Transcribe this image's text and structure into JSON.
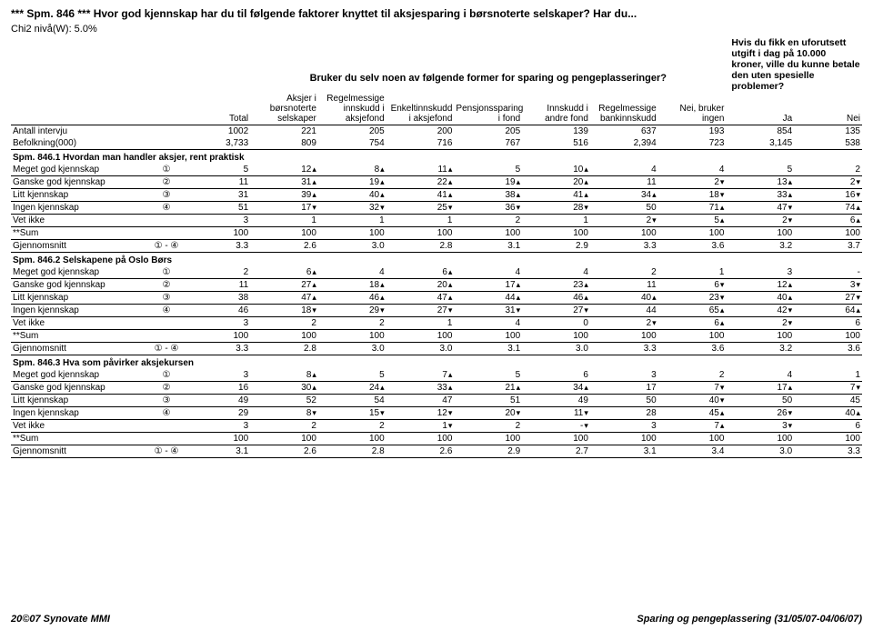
{
  "title": "*** Spm. 846 *** Hvor god kjennskap har du til følgende faktorer knyttet til aksjesparing i børsnoterte selskaper? Har du...",
  "chi2": "Chi2 nivå(W): 5.0%",
  "header_span": "Bruker du selv noen av følgende former for sparing og pengeplasseringer?",
  "header_right": "Hvis du fikk en uforutsett utgift i dag på 10.000 kroner, ville du kunne betale den uten spesielle problemer?",
  "cols": [
    "Total",
    "Aksjer i børsnoterte selskaper",
    "Regelmessige innskudd i aksjefond",
    "Enkeltinnskudd i aksjefond",
    "Pensjonssparing i fond",
    "Innskudd i andre fond",
    "Regelmessige bankinnskudd",
    "Nei, bruker ingen",
    "Ja",
    "Nei"
  ],
  "antall": [
    "Antall intervju",
    "1002",
    "221",
    "205",
    "200",
    "205",
    "139",
    "637",
    "193",
    "854",
    "135"
  ],
  "befolk": [
    "Befolkning(000)",
    "3,733",
    "809",
    "754",
    "716",
    "767",
    "516",
    "2,394",
    "723",
    "3,145",
    "538"
  ],
  "up": "▴",
  "dn": "▾",
  "sections": [
    {
      "title": "Spm. 846.1 Hvordan man handler aksjer, rent praktisk",
      "rows": [
        {
          "l": "Meget god kjennskap",
          "c": "①",
          "v": [
            "5",
            "12▴",
            "8▴",
            "11▴",
            "5",
            "10▴",
            "4",
            "4",
            "5",
            "2"
          ]
        },
        {
          "l": "Ganske god kjennskap",
          "c": "②",
          "v": [
            "11",
            "31▴",
            "19▴",
            "22▴",
            "19▴",
            "20▴",
            "11",
            "2▾",
            "13▴",
            "2▾"
          ]
        },
        {
          "l": "Litt kjennskap",
          "c": "③",
          "v": [
            "31",
            "39▴",
            "40▴",
            "41▴",
            "38▴",
            "41▴",
            "34▴",
            "18▾",
            "33▴",
            "16▾"
          ]
        },
        {
          "l": "Ingen kjennskap",
          "c": "④",
          "v": [
            "51",
            "17▾",
            "32▾",
            "25▾",
            "36▾",
            "28▾",
            "50",
            "71▴",
            "47▾",
            "74▴"
          ]
        },
        {
          "l": "Vet ikke",
          "c": "",
          "v": [
            "3",
            "1",
            "1",
            "1",
            "2",
            "1",
            "2▾",
            "5▴",
            "2▾",
            "6▴"
          ]
        },
        {
          "l": "**Sum",
          "c": "",
          "v": [
            "100",
            "100",
            "100",
            "100",
            "100",
            "100",
            "100",
            "100",
            "100",
            "100"
          ]
        },
        {
          "l": "Gjennomsnitt",
          "c": "① - ④",
          "v": [
            "3.3",
            "2.6",
            "3.0",
            "2.8",
            "3.1",
            "2.9",
            "3.3",
            "3.6",
            "3.2",
            "3.7"
          ]
        }
      ]
    },
    {
      "title": "Spm. 846.2 Selskapene på Oslo Børs",
      "rows": [
        {
          "l": "Meget god kjennskap",
          "c": "①",
          "v": [
            "2",
            "6▴",
            "4",
            "6▴",
            "4",
            "4",
            "2",
            "1",
            "3",
            "-"
          ]
        },
        {
          "l": "Ganske god kjennskap",
          "c": "②",
          "v": [
            "11",
            "27▴",
            "18▴",
            "20▴",
            "17▴",
            "23▴",
            "11",
            "6▾",
            "12▴",
            "3▾"
          ]
        },
        {
          "l": "Litt kjennskap",
          "c": "③",
          "v": [
            "38",
            "47▴",
            "46▴",
            "47▴",
            "44▴",
            "46▴",
            "40▴",
            "23▾",
            "40▴",
            "27▾"
          ]
        },
        {
          "l": "Ingen kjennskap",
          "c": "④",
          "v": [
            "46",
            "18▾",
            "29▾",
            "27▾",
            "31▾",
            "27▾",
            "44",
            "65▴",
            "42▾",
            "64▴"
          ]
        },
        {
          "l": "Vet ikke",
          "c": "",
          "v": [
            "3",
            "2",
            "2",
            "1",
            "4",
            "0",
            "2▾",
            "6▴",
            "2▾",
            "6"
          ]
        },
        {
          "l": "**Sum",
          "c": "",
          "v": [
            "100",
            "100",
            "100",
            "100",
            "100",
            "100",
            "100",
            "100",
            "100",
            "100"
          ]
        },
        {
          "l": "Gjennomsnitt",
          "c": "① - ④",
          "v": [
            "3.3",
            "2.8",
            "3.0",
            "3.0",
            "3.1",
            "3.0",
            "3.3",
            "3.6",
            "3.2",
            "3.6"
          ]
        }
      ]
    },
    {
      "title": "Spm. 846.3 Hva som påvirker aksjekursen",
      "rows": [
        {
          "l": "Meget god kjennskap",
          "c": "①",
          "v": [
            "3",
            "8▴",
            "5",
            "7▴",
            "5",
            "6",
            "3",
            "2",
            "4",
            "1"
          ]
        },
        {
          "l": "Ganske god kjennskap",
          "c": "②",
          "v": [
            "16",
            "30▴",
            "24▴",
            "33▴",
            "21▴",
            "34▴",
            "17",
            "7▾",
            "17▴",
            "7▾"
          ]
        },
        {
          "l": "Litt kjennskap",
          "c": "③",
          "v": [
            "49",
            "52",
            "54",
            "47",
            "51",
            "49",
            "50",
            "40▾",
            "50",
            "45"
          ]
        },
        {
          "l": "Ingen kjennskap",
          "c": "④",
          "v": [
            "29",
            "8▾",
            "15▾",
            "12▾",
            "20▾",
            "11▾",
            "28",
            "45▴",
            "26▾",
            "40▴"
          ]
        },
        {
          "l": "Vet ikke",
          "c": "",
          "v": [
            "3",
            "2",
            "2",
            "1▾",
            "2",
            "-▾",
            "3",
            "7▴",
            "3▾",
            "6"
          ]
        },
        {
          "l": "**Sum",
          "c": "",
          "v": [
            "100",
            "100",
            "100",
            "100",
            "100",
            "100",
            "100",
            "100",
            "100",
            "100"
          ]
        },
        {
          "l": "Gjennomsnitt",
          "c": "① - ④",
          "v": [
            "3.1",
            "2.6",
            "2.8",
            "2.6",
            "2.9",
            "2.7",
            "3.1",
            "3.4",
            "3.0",
            "3.3"
          ]
        }
      ]
    }
  ],
  "footer_left": "20©07 Synovate MMI",
  "footer_right": "Sparing og pengeplassering (31/05/07-04/06/07)"
}
